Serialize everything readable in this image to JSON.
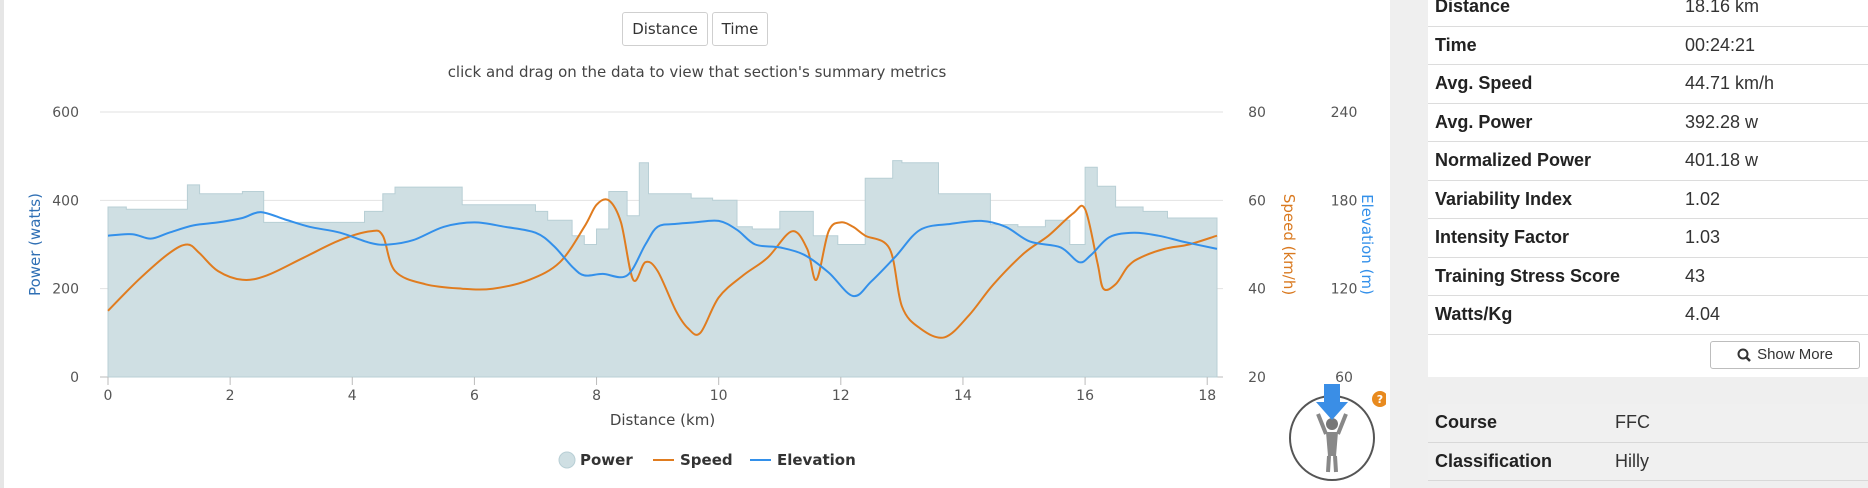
{
  "toggle": {
    "distance_label": "Distance",
    "time_label": "Time"
  },
  "hint": "click and drag on the data to view that section's summary metrics",
  "legend": {
    "power": "Power",
    "speed": "Speed",
    "elevation": "Elevation"
  },
  "colors": {
    "power_fill": "#cfdfe3",
    "power_line": "#b8cfd5",
    "speed": "#e07c1f",
    "elevation": "#3390ea",
    "power_axis": "#2f6fb4",
    "speed_axis": "#d9791f",
    "elevation_axis": "#3390ea"
  },
  "chart_data": {
    "type": "line",
    "xlabel": "Distance (km)",
    "x_ticks": [
      "0",
      "2",
      "4",
      "6",
      "8",
      "10",
      "12",
      "14",
      "16",
      "18"
    ],
    "xlim": [
      0,
      18.16
    ],
    "y_axes": [
      {
        "label": "Power (watts)",
        "ticks": [
          "0",
          "200",
          "400",
          "600"
        ],
        "lim": [
          0,
          600
        ]
      },
      {
        "label": "Speed (km/h)",
        "ticks": [
          "20",
          "40",
          "60",
          "80"
        ],
        "lim": [
          20,
          80
        ]
      },
      {
        "label": "Elevation (m)",
        "ticks": [
          "60",
          "120",
          "180",
          "240"
        ],
        "lim": [
          60,
          240
        ]
      }
    ],
    "grid": true,
    "legend_position": "bottom-center",
    "series": [
      {
        "name": "Power",
        "kind": "area",
        "axis": 0,
        "x": [
          0,
          0.3,
          0.3,
          1.3,
          1.3,
          1.5,
          1.5,
          2.2,
          2.2,
          2.55,
          2.55,
          3.3,
          3.3,
          4.2,
          4.2,
          4.5,
          4.5,
          4.7,
          4.7,
          5.8,
          5.8,
          7,
          7,
          7.2,
          7.2,
          7.6,
          7.6,
          7.8,
          7.8,
          8.0,
          8.0,
          8.2,
          8.2,
          8.5,
          8.5,
          8.7,
          8.7,
          8.85,
          8.85,
          9.55,
          9.55,
          9.9,
          9.9,
          10.3,
          10.3,
          10.55,
          10.55,
          11.0,
          11.0,
          11.55,
          11.55,
          11.95,
          11.95,
          12.4,
          12.4,
          12.85,
          12.85,
          13.0,
          13.0,
          13.6,
          13.6,
          14.45,
          14.45,
          14.9,
          14.9,
          15.35,
          15.35,
          15.75,
          15.75,
          16.0,
          16.0,
          16.2,
          16.2,
          16.5,
          16.5,
          16.95,
          16.95,
          17.35,
          17.35,
          18.16
        ],
        "y": [
          385,
          385,
          380,
          380,
          435,
          435,
          415,
          415,
          420,
          420,
          350,
          350,
          350,
          350,
          375,
          375,
          415,
          415,
          430,
          430,
          390,
          390,
          375,
          375,
          355,
          355,
          320,
          320,
          300,
          300,
          335,
          335,
          420,
          420,
          365,
          365,
          485,
          485,
          415,
          415,
          405,
          405,
          400,
          400,
          340,
          340,
          335,
          335,
          375,
          375,
          320,
          320,
          300,
          300,
          450,
          450,
          490,
          490,
          485,
          485,
          415,
          415,
          345,
          345,
          340,
          340,
          355,
          355,
          300,
          300,
          475,
          475,
          432,
          432,
          385,
          385,
          375,
          375,
          360,
          360
        ]
      },
      {
        "name": "Speed",
        "kind": "line",
        "axis": 1,
        "x": [
          0,
          0.5,
          1,
          1.3,
          1.5,
          1.8,
          2.2,
          2.6,
          3.2,
          3.8,
          4.3,
          4.5,
          4.7,
          5.2,
          5.8,
          6.3,
          6.9,
          7.4,
          7.8,
          8.0,
          8.2,
          8.4,
          8.6,
          8.8,
          9.0,
          9.3,
          9.5,
          9.7,
          10.0,
          10.4,
          10.8,
          11.2,
          11.45,
          11.6,
          11.8,
          12.0,
          12.2,
          12.4,
          12.8,
          13.0,
          13.3,
          13.7,
          14.1,
          14.5,
          15.0,
          15.4,
          15.8,
          16.0,
          16.2,
          16.3,
          16.5,
          16.7,
          16.9,
          17.3,
          17.7,
          18.16
        ],
        "y": [
          35,
          42,
          48,
          50,
          48,
          44,
          42,
          43,
          47,
          51,
          53,
          52,
          44,
          41,
          40,
          40,
          42,
          46,
          54,
          59,
          60,
          55,
          42,
          46,
          44,
          35,
          31,
          30,
          38,
          43,
          47,
          53,
          49,
          42,
          53,
          55,
          54,
          52,
          49,
          36,
          31,
          29,
          34,
          41,
          48,
          52,
          57,
          58,
          46,
          40,
          41,
          45,
          47,
          49,
          50,
          52
        ]
      },
      {
        "name": "Elevation",
        "kind": "line",
        "axis": 2,
        "x": [
          0,
          0.4,
          0.7,
          1,
          1.4,
          1.8,
          2.2,
          2.5,
          2.9,
          3.3,
          3.8,
          4.3,
          4.6,
          5.0,
          5.5,
          6.0,
          6.5,
          7.0,
          7.3,
          7.6,
          7.8,
          8.1,
          8.5,
          8.8,
          9.0,
          9.3,
          9.6,
          10.0,
          10.3,
          10.6,
          11.0,
          11.4,
          11.8,
          12.2,
          12.5,
          12.9,
          13.3,
          13.8,
          14.3,
          14.7,
          15.1,
          15.6,
          15.9,
          16.1,
          16.4,
          16.8,
          17.2,
          17.6,
          18.16
        ],
        "y": [
          156,
          157,
          154,
          158,
          163,
          165,
          168,
          172,
          167,
          162,
          158,
          151,
          150,
          153,
          162,
          165,
          162,
          158,
          149,
          135,
          129,
          130,
          129,
          150,
          162,
          164,
          165,
          166,
          160,
          150,
          148,
          143,
          131,
          115,
          125,
          142,
          160,
          164,
          166,
          162,
          152,
          148,
          138,
          143,
          155,
          158,
          156,
          152,
          147
        ]
      }
    ]
  },
  "stats": [
    {
      "label": "Distance",
      "value": "18.16 km"
    },
    {
      "label": "Time",
      "value": "00:24:21"
    },
    {
      "label": "Avg. Speed",
      "value": "44.71 km/h"
    },
    {
      "label": "Avg. Power",
      "value": "392.28 w"
    },
    {
      "label": "Normalized Power",
      "value": "401.18 w"
    },
    {
      "label": "Variability Index",
      "value": "1.02"
    },
    {
      "label": "Intensity Factor",
      "value": "1.03"
    },
    {
      "label": "Training Stress Score",
      "value": "43"
    },
    {
      "label": "Watts/Kg",
      "value": "4.04"
    }
  ],
  "show_more_label": "Show More",
  "course": [
    {
      "label": "Course",
      "value": "FFC"
    },
    {
      "label": "Classification",
      "value": "Hilly"
    }
  ],
  "badge": {
    "icon": "cyclist-climbing-icon",
    "help_glyph": "?"
  }
}
